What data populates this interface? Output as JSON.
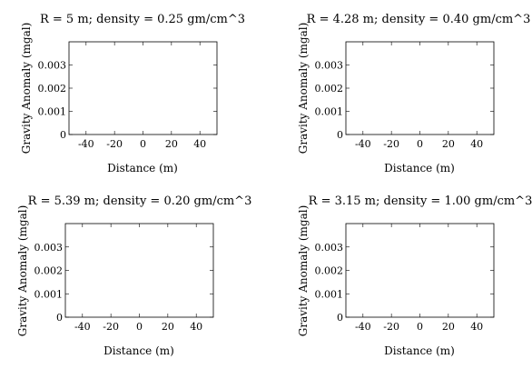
{
  "chart_data": [
    {
      "type": "line",
      "title": "R = 5 m; density = 0.25 gm/cm^3",
      "xlabel": "Distance (m)",
      "ylabel": "Gravity Anomaly (mgal)",
      "xlim": [
        -52,
        52
      ],
      "ylim": [
        0,
        0.004
      ],
      "xticks": [
        -40,
        -20,
        0,
        20,
        40
      ],
      "xtick_labels": [
        "-40",
        "-20",
        "0",
        "20",
        "40"
      ],
      "yticks": [
        0,
        0.001,
        0.002,
        0.003
      ],
      "ytick_labels": [
        "0",
        "0.001",
        "0.002",
        "0.003"
      ],
      "series": []
    },
    {
      "type": "line",
      "title": "R = 4.28 m; density = 0.40 gm/cm^3",
      "xlabel": "Distance (m)",
      "ylabel": "Gravity Anomaly (mgal)",
      "xlim": [
        -52,
        52
      ],
      "ylim": [
        0,
        0.004
      ],
      "xticks": [
        -40,
        -20,
        0,
        20,
        40
      ],
      "xtick_labels": [
        "-40",
        "-20",
        "0",
        "20",
        "40"
      ],
      "yticks": [
        0,
        0.001,
        0.002,
        0.003
      ],
      "ytick_labels": [
        "0",
        "0.001",
        "0.002",
        "0.003"
      ],
      "series": []
    },
    {
      "type": "line",
      "title": "R = 5.39 m; density = 0.20 gm/cm^3",
      "xlabel": "Distance (m)",
      "ylabel": "Gravity Anomaly (mgal)",
      "xlim": [
        -52,
        52
      ],
      "ylim": [
        0,
        0.004
      ],
      "xticks": [
        -40,
        -20,
        0,
        20,
        40
      ],
      "xtick_labels": [
        "-40",
        "-20",
        "0",
        "20",
        "40"
      ],
      "yticks": [
        0,
        0.001,
        0.002,
        0.003
      ],
      "ytick_labels": [
        "0",
        "0.001",
        "0.002",
        "0.003"
      ],
      "series": []
    },
    {
      "type": "line",
      "title": "R = 3.15 m; density = 1.00 gm/cm^3",
      "xlabel": "Distance (m)",
      "ylabel": "Gravity Anomaly (mgal)",
      "xlim": [
        -52,
        52
      ],
      "ylim": [
        0,
        0.004
      ],
      "xticks": [
        -40,
        -20,
        0,
        20,
        40
      ],
      "xtick_labels": [
        "-40",
        "-20",
        "0",
        "20",
        "40"
      ],
      "yticks": [
        0,
        0.001,
        0.002,
        0.003
      ],
      "ytick_labels": [
        "0",
        "0.001",
        "0.002",
        "0.003"
      ],
      "series": []
    }
  ]
}
